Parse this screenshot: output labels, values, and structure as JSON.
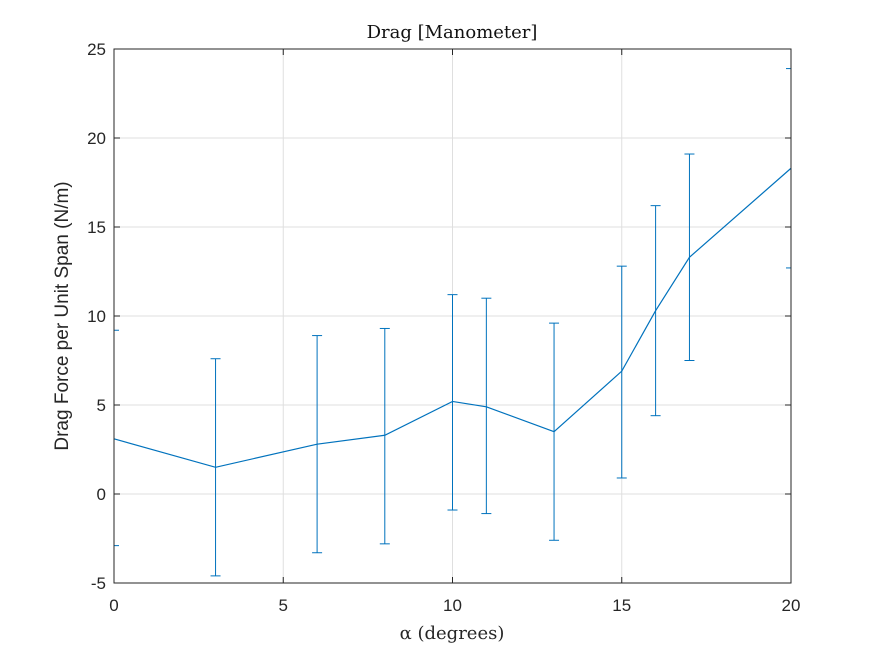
{
  "chart_data": {
    "type": "line",
    "title": "Drag [Manometer]",
    "xlabel": "α (degrees)",
    "ylabel": "Drag Force per Unit Span (N/m)",
    "xlim": [
      0,
      20
    ],
    "ylim": [
      -5,
      25
    ],
    "xticks": [
      0,
      5,
      10,
      15,
      20
    ],
    "xtick_labels": [
      "0",
      "5",
      "10",
      "15",
      "20"
    ],
    "yticks": [
      -5,
      0,
      5,
      10,
      15,
      20,
      25
    ],
    "ytick_labels": [
      "-5",
      "0",
      "5",
      "10",
      "15",
      "20",
      "25"
    ],
    "grid": true,
    "color": "#0072BD",
    "series": [
      {
        "x": [
          0,
          3,
          6,
          8,
          10,
          11,
          13,
          15,
          16,
          17,
          20
        ],
        "y": [
          3.1,
          1.5,
          2.8,
          3.3,
          5.2,
          4.9,
          3.5,
          6.9,
          10.3,
          13.3,
          18.3
        ],
        "err_low": [
          -2.9,
          -4.6,
          -3.3,
          -2.8,
          -0.9,
          -1.1,
          -2.6,
          0.9,
          4.4,
          7.5,
          12.7
        ],
        "err_high": [
          9.2,
          7.6,
          8.9,
          9.3,
          11.2,
          11.0,
          9.6,
          12.8,
          16.2,
          19.1,
          23.9
        ]
      }
    ]
  }
}
